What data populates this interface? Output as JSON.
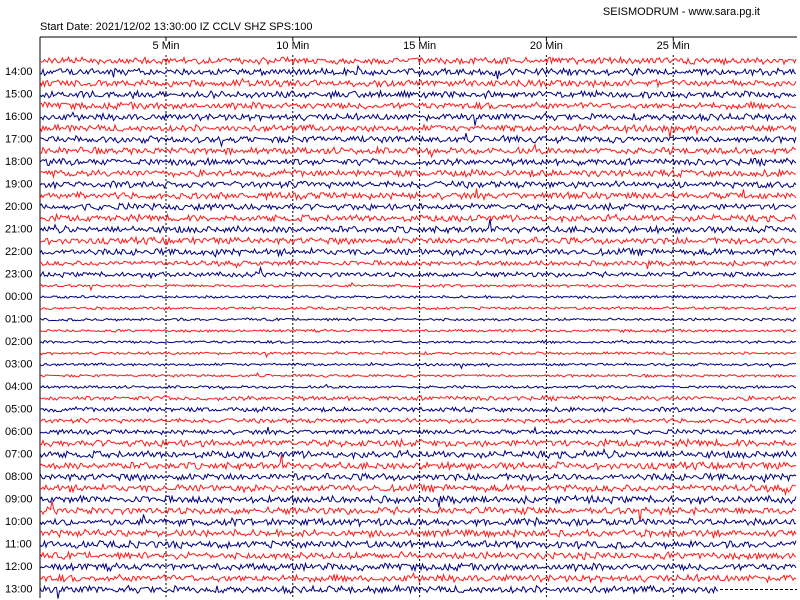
{
  "header": {
    "title": "SEISMODRUM - www.sara.pg.it",
    "start_date": "Start Date: 2021/12/02 13:30:00 IZ CCLV SHZ SPS:100"
  },
  "minute_labels": [
    "5 Min",
    "10 Min",
    "15 Min",
    "20 Min",
    "25 Min"
  ],
  "row_labels": [
    "14:00",
    "15:00",
    "16:00",
    "17:00",
    "18:00",
    "19:00",
    "20:00",
    "21:00",
    "22:00",
    "23:00",
    "00:00",
    "01:00",
    "02:00",
    "03:00",
    "04:00",
    "05:00",
    "06:00",
    "07:00",
    "08:00",
    "09:00",
    "10:00",
    "11:00",
    "12:00",
    "13:00"
  ]
}
